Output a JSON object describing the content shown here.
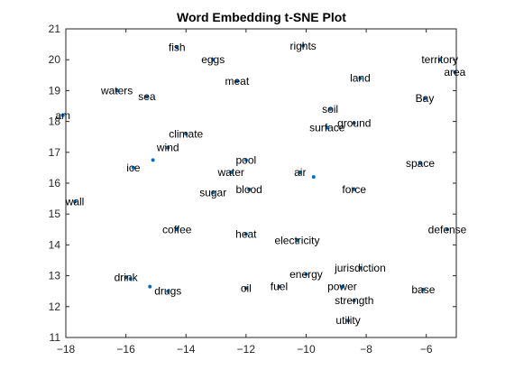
{
  "chart_data": {
    "type": "scatter",
    "title": "Word Embedding t-SNE Plot",
    "xlabel": "",
    "ylabel": "",
    "xlim": [
      -18,
      -5
    ],
    "ylim": [
      11,
      21
    ],
    "xticks": [
      -18,
      -16,
      -14,
      -12,
      -10,
      -8,
      -6
    ],
    "yticks": [
      11,
      12,
      13,
      14,
      15,
      16,
      17,
      18,
      19,
      20,
      21
    ],
    "grid": false,
    "legend": "none",
    "marker_color": "#0072BD",
    "points": [
      {
        "word": "fish",
        "x": -14.3,
        "y": 20.4
      },
      {
        "word": "eggs",
        "x": -13.1,
        "y": 20.0
      },
      {
        "word": "meat",
        "x": -12.3,
        "y": 19.3
      },
      {
        "word": "rights",
        "x": -10.1,
        "y": 20.45
      },
      {
        "word": "territory",
        "x": -5.55,
        "y": 20.0
      },
      {
        "word": "area",
        "x": -5.05,
        "y": 19.6
      },
      {
        "word": "land",
        "x": -8.2,
        "y": 19.4
      },
      {
        "word": "waters",
        "x": -16.3,
        "y": 19.0
      },
      {
        "word": "sea",
        "x": -15.3,
        "y": 18.8
      },
      {
        "word": "Bay",
        "x": -6.05,
        "y": 18.75
      },
      {
        "word": "soil",
        "x": -9.2,
        "y": 18.4
      },
      {
        "word": "ground",
        "x": -8.4,
        "y": 17.95
      },
      {
        "word": "am",
        "x": -18.1,
        "y": 18.2
      },
      {
        "word": "surface",
        "x": -9.3,
        "y": 17.8
      },
      {
        "word": "climate",
        "x": -14.0,
        "y": 17.6
      },
      {
        "word": "pool",
        "x": -12.0,
        "y": 16.75
      },
      {
        "word": "wind",
        "x": -14.6,
        "y": 17.15
      },
      {
        "word": "ice",
        "x": -15.75,
        "y": 16.5
      },
      {
        "word": "water",
        "x": -12.5,
        "y": 16.35
      },
      {
        "word": "air",
        "x": -10.2,
        "y": 16.35
      },
      {
        "word": "space",
        "x": -6.2,
        "y": 16.65
      },
      {
        "word": "blood",
        "x": -11.9,
        "y": 15.8
      },
      {
        "word": "sugar",
        "x": -13.1,
        "y": 15.7
      },
      {
        "word": "force",
        "x": -8.4,
        "y": 15.8
      },
      {
        "word": "wall",
        "x": -17.7,
        "y": 15.4
      },
      {
        "word": "coffee",
        "x": -14.3,
        "y": 14.5
      },
      {
        "word": "heat",
        "x": -12.0,
        "y": 14.35
      },
      {
        "word": "electricity",
        "x": -10.3,
        "y": 14.15
      },
      {
        "word": "defense",
        "x": -5.3,
        "y": 14.5
      },
      {
        "word": "jurisdiction",
        "x": -8.2,
        "y": 13.25
      },
      {
        "word": "energy",
        "x": -10.0,
        "y": 13.05
      },
      {
        "word": "drink",
        "x": -16.0,
        "y": 12.95
      },
      {
        "word": "drugs",
        "x": -14.6,
        "y": 12.5
      },
      {
        "word": "oil",
        "x": -12.0,
        "y": 12.6
      },
      {
        "word": "fuel",
        "x": -10.9,
        "y": 12.65
      },
      {
        "word": "power",
        "x": -8.8,
        "y": 12.65
      },
      {
        "word": "base",
        "x": -6.1,
        "y": 12.55
      },
      {
        "word": "strength",
        "x": -8.4,
        "y": 12.2
      },
      {
        "word": "utility",
        "x": -8.6,
        "y": 11.55
      }
    ],
    "extra_points": [
      {
        "x": -15.1,
        "y": 16.75
      },
      {
        "x": -9.75,
        "y": 16.2
      },
      {
        "x": -15.85,
        "y": 12.9
      },
      {
        "x": -15.2,
        "y": 12.65
      }
    ]
  }
}
